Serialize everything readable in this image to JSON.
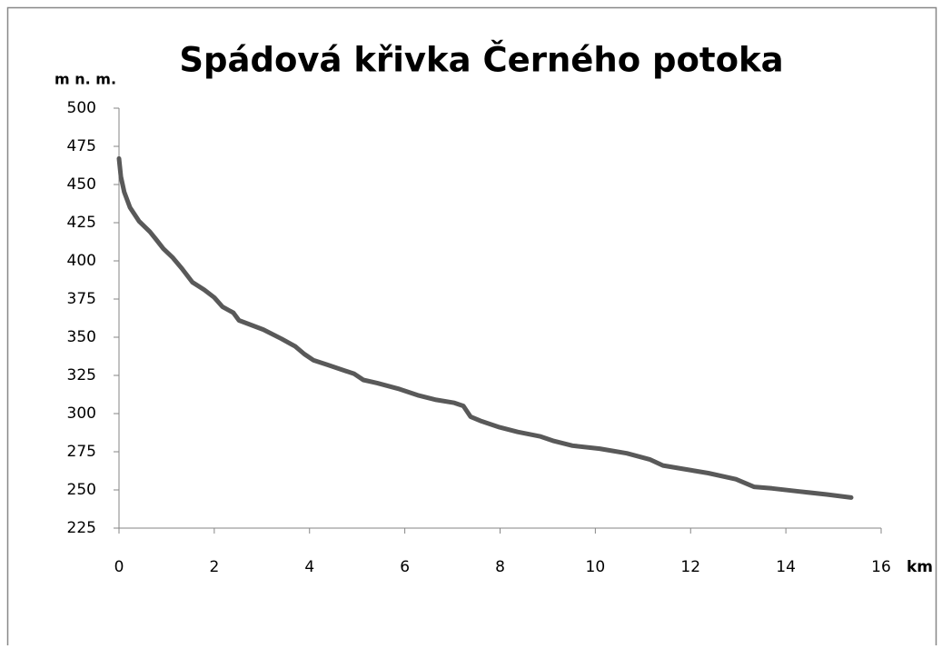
{
  "chart_data": {
    "type": "line",
    "title": "Spádová křivka Černého potoka",
    "y_label": "m n. m.",
    "x_label": "km",
    "series": [
      {
        "color": "#595959",
        "x": [
          0,
          0.04,
          0.11,
          0.23,
          0.42,
          0.65,
          0.78,
          0.93,
          1.13,
          1.32,
          1.54,
          1.79,
          2.0,
          2.17,
          2.4,
          2.52,
          2.69,
          3.03,
          3.41,
          3.7,
          3.89,
          4.08,
          4.37,
          4.75,
          4.94,
          5.13,
          5.42,
          5.89,
          6.27,
          6.66,
          7.04,
          7.23,
          7.38,
          7.61,
          7.99,
          8.37,
          8.85,
          9.13,
          9.52,
          10.09,
          10.66,
          11.14,
          11.42,
          11.8,
          12.37,
          12.95,
          13.33,
          13.71,
          14.28,
          14.86,
          15.37
        ],
        "values": [
          467,
          455,
          445,
          435,
          426,
          419,
          414,
          408,
          402,
          395,
          386,
          381,
          376,
          370,
          366,
          361,
          359,
          355,
          349,
          344,
          339,
          335,
          332,
          328,
          326,
          322,
          320,
          316,
          312,
          309,
          307,
          305,
          298,
          295,
          291,
          288,
          285,
          282,
          279,
          277,
          274,
          270,
          266,
          264,
          261,
          257,
          252,
          251,
          249,
          247,
          245
        ]
      }
    ],
    "xlim": [
      0,
      16
    ],
    "xticks": [
      0,
      2,
      4,
      6,
      8,
      10,
      12,
      14,
      16
    ],
    "ylim": [
      225,
      500
    ],
    "yticks": [
      225,
      250,
      275,
      300,
      325,
      350,
      375,
      400,
      425,
      450,
      475,
      500
    ]
  }
}
